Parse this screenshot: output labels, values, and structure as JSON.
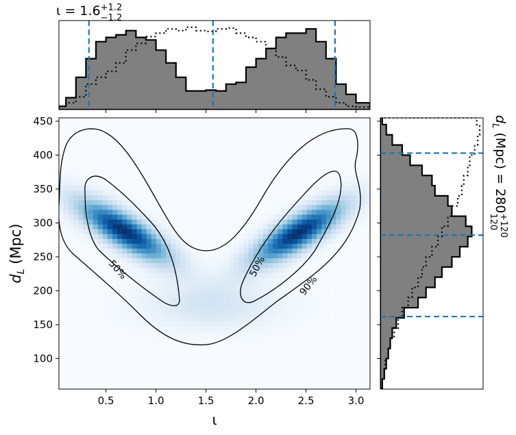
{
  "chart_data": {
    "type": "heatmap",
    "panels": [
      "joint-density",
      "top-marginal-iota",
      "right-marginal-dL"
    ],
    "xlabel": "ι",
    "ylabel": "d_L (Mpc)",
    "xlim": [
      0.03,
      3.14
    ],
    "ylim": [
      55,
      455
    ],
    "x_ticks": [
      0.5,
      1.0,
      1.5,
      2.0,
      2.5,
      3.0
    ],
    "x_tick_labels": [
      "0.5",
      "1.0",
      "1.5",
      "2.0",
      "2.5",
      "3.0"
    ],
    "y_ticks": [
      100,
      150,
      200,
      250,
      300,
      350,
      400,
      450
    ],
    "y_tick_labels": [
      "100",
      "150",
      "200",
      "250",
      "300",
      "350",
      "400",
      "450"
    ],
    "colormap": "Blues",
    "density_modes": [
      {
        "iota": 0.68,
        "dL": 288,
        "weight": 1.0
      },
      {
        "iota": 2.42,
        "dL": 285,
        "weight": 1.0
      }
    ],
    "contour_labels": [
      "50%",
      "50%",
      "90%"
    ],
    "top_title": {
      "symbol": "ι",
      "equals": " = 1.6",
      "sup": "+1.2",
      "sub": "−1.2"
    },
    "right_title": {
      "text": "d",
      "subscript": "L",
      "rest": " (Mpc) = 280",
      "sup": "+120",
      "sub": "120"
    },
    "iota_quantile_lines": [
      0.33,
      1.57,
      2.79
    ],
    "dL_quantile_lines": [
      162,
      282,
      403
    ],
    "quantile_line_color": "#1f77b4",
    "iota_posterior_hist": {
      "style": "filled",
      "fill_color": "#808080",
      "edge": [
        0.03,
        0.1,
        0.2,
        0.3,
        0.4,
        0.5,
        0.6,
        0.7,
        0.8,
        0.9,
        1.0,
        1.1,
        1.2,
        1.3,
        1.4,
        1.5,
        1.6,
        1.7,
        1.8,
        1.9,
        2.0,
        2.1,
        2.2,
        2.3,
        2.4,
        2.5,
        2.6,
        2.7,
        2.8,
        2.9,
        3.0,
        3.14
      ],
      "heights": [
        0.04,
        0.14,
        0.38,
        0.6,
        0.8,
        0.85,
        0.88,
        0.93,
        0.85,
        0.82,
        0.7,
        0.55,
        0.38,
        0.22,
        0.22,
        0.23,
        0.22,
        0.3,
        0.32,
        0.5,
        0.6,
        0.72,
        0.85,
        0.9,
        0.9,
        0.95,
        0.8,
        0.6,
        0.3,
        0.18,
        0.08
      ]
    },
    "iota_prior_hist": {
      "style": "dotted",
      "edge": [
        0.03,
        0.1,
        0.2,
        0.3,
        0.4,
        0.5,
        0.6,
        0.7,
        0.8,
        0.9,
        1.0,
        1.1,
        1.2,
        1.3,
        1.4,
        1.5,
        1.6,
        1.7,
        1.8,
        1.9,
        2.0,
        2.1,
        2.2,
        2.3,
        2.4,
        2.5,
        2.6,
        2.7,
        2.8,
        2.9,
        3.0,
        3.14
      ],
      "heights": [
        0.04,
        0.08,
        0.15,
        0.3,
        0.38,
        0.45,
        0.55,
        0.7,
        0.78,
        0.86,
        0.9,
        0.95,
        0.93,
        0.97,
        0.93,
        0.92,
        0.95,
        0.96,
        0.9,
        0.85,
        0.8,
        0.72,
        0.62,
        0.52,
        0.46,
        0.35,
        0.24,
        0.15,
        0.08,
        0.04,
        0.03
      ]
    },
    "dL_posterior_hist": {
      "style": "filled",
      "fill_color": "#808080",
      "dL_edges": [
        55,
        70,
        85,
        100,
        115,
        130,
        145,
        160,
        175,
        190,
        205,
        220,
        235,
        250,
        265,
        280,
        295,
        310,
        325,
        340,
        355,
        370,
        385,
        400,
        415,
        430,
        445,
        455
      ],
      "widths": [
        0.02,
        0.04,
        0.06,
        0.08,
        0.1,
        0.12,
        0.16,
        0.24,
        0.38,
        0.46,
        0.55,
        0.62,
        0.72,
        0.8,
        0.88,
        0.92,
        0.86,
        0.72,
        0.68,
        0.55,
        0.52,
        0.42,
        0.3,
        0.22,
        0.12,
        0.06,
        0.02
      ]
    },
    "dL_prior_hist": {
      "style": "dotted",
      "dL_edges": [
        55,
        70,
        85,
        100,
        115,
        130,
        145,
        160,
        175,
        190,
        205,
        220,
        235,
        250,
        265,
        280,
        295,
        310,
        325,
        340,
        355,
        370,
        385,
        400,
        415,
        430,
        445,
        455
      ],
      "widths": [
        0.02,
        0.04,
        0.05,
        0.08,
        0.1,
        0.14,
        0.18,
        0.22,
        0.28,
        0.32,
        0.38,
        0.42,
        0.46,
        0.52,
        0.58,
        0.62,
        0.68,
        0.72,
        0.78,
        0.82,
        0.84,
        0.88,
        0.9,
        0.95,
        0.98,
        1.0,
        0.97
      ]
    }
  }
}
